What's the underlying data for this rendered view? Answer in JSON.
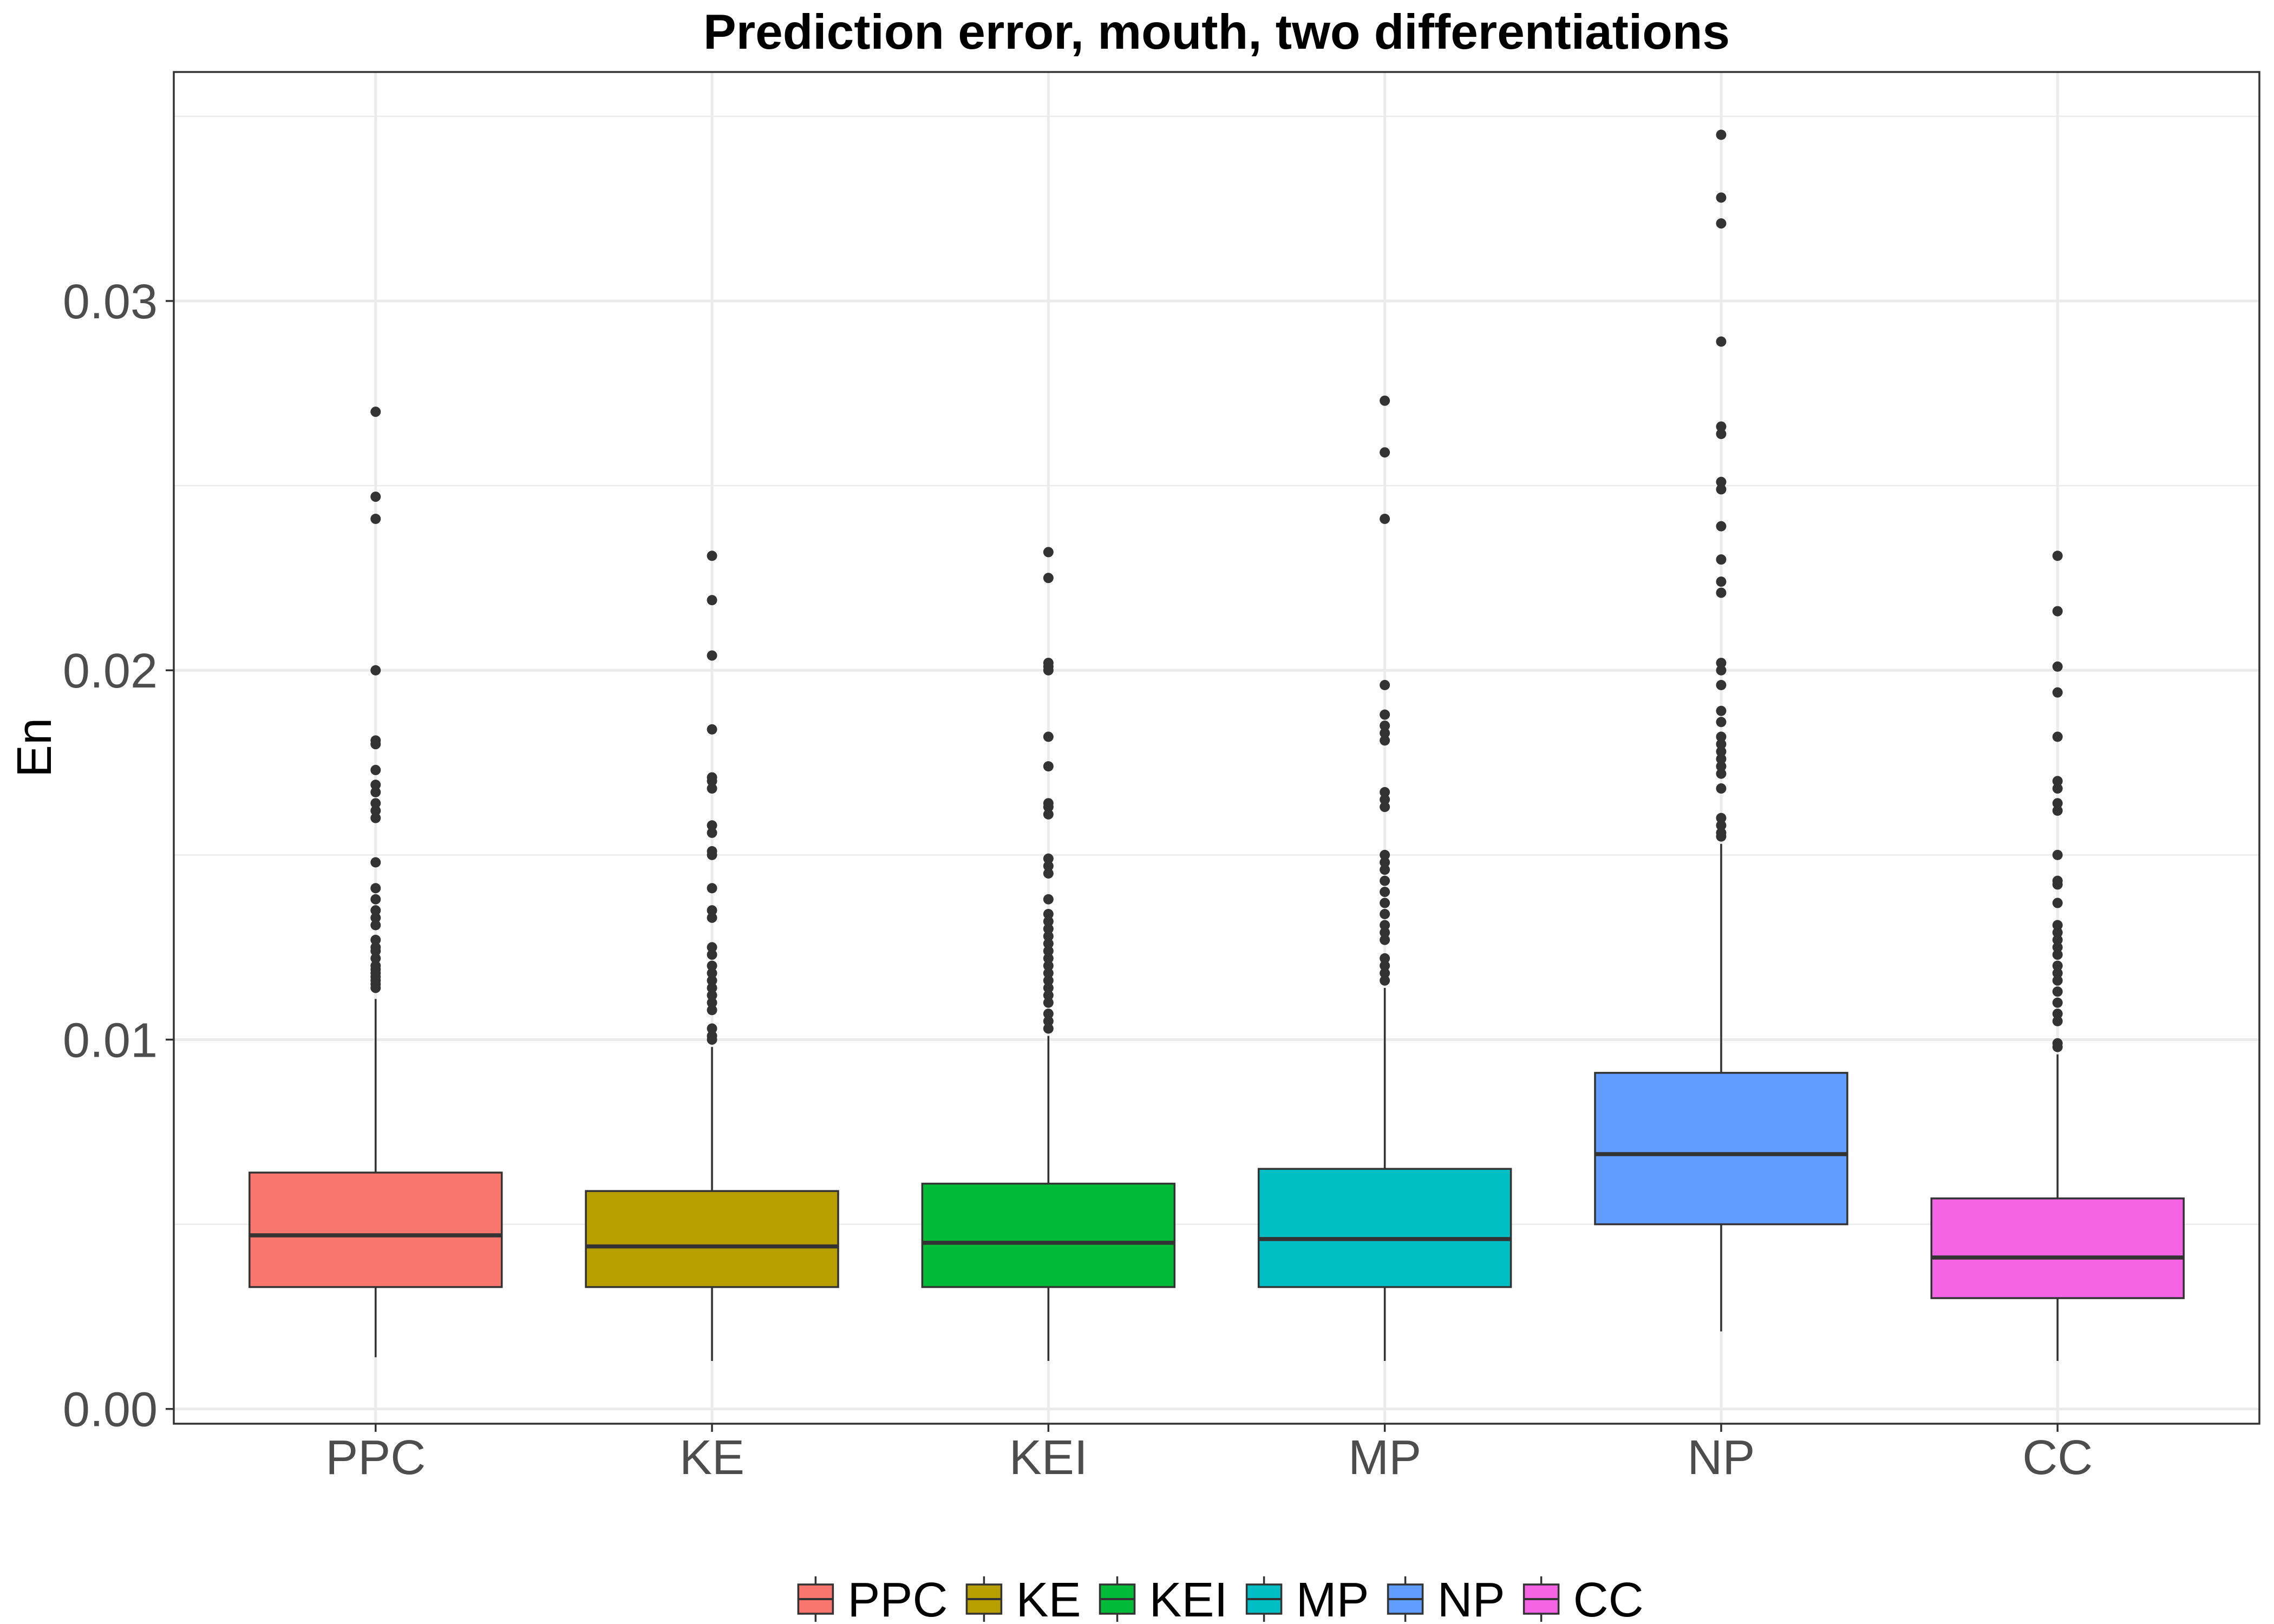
{
  "chart_data": {
    "type": "boxplot",
    "title": "Prediction error, mouth, two differentiations",
    "ylabel": "En",
    "categories": [
      "PPC",
      "KE",
      "KEI",
      "MP",
      "NP",
      "CC"
    ],
    "ylim": [
      -0.0004,
      0.0362
    ],
    "y_ticks": [
      0,
      0.01,
      0.02,
      0.03
    ],
    "y_tick_labels": [
      "0.00",
      "0.01",
      "0.02",
      "0.03"
    ],
    "y_minor_ticks": [
      0.005,
      0.015,
      0.025,
      0.035
    ],
    "grid": true,
    "legend_position": "bottom",
    "series": [
      {
        "name": "PPC",
        "color": "#F8766D",
        "whisker_low": 0.0014,
        "q1": 0.0033,
        "median": 0.0047,
        "q3": 0.0064,
        "whisker_high": 0.0111,
        "outliers": [
          0.027,
          0.0247,
          0.0241,
          0.02,
          0.0181,
          0.018,
          0.0173,
          0.0169,
          0.0167,
          0.0164,
          0.0162,
          0.016,
          0.0148,
          0.0141,
          0.0138,
          0.0135,
          0.0133,
          0.0131,
          0.0127,
          0.0125,
          0.0124,
          0.0122,
          0.012,
          0.0119,
          0.0118,
          0.0117,
          0.0116,
          0.0115,
          0.0114
        ]
      },
      {
        "name": "KE",
        "color": "#B79F00",
        "whisker_low": 0.0013,
        "q1": 0.0033,
        "median": 0.0044,
        "q3": 0.0059,
        "whisker_high": 0.0098,
        "outliers": [
          0.0231,
          0.0219,
          0.0204,
          0.0184,
          0.0171,
          0.017,
          0.0168,
          0.0158,
          0.0156,
          0.0151,
          0.015,
          0.0141,
          0.0135,
          0.0133,
          0.0125,
          0.0123,
          0.012,
          0.0118,
          0.0116,
          0.0114,
          0.0112,
          0.011,
          0.0108,
          0.0103,
          0.0101,
          0.01
        ]
      },
      {
        "name": "KEI",
        "color": "#00BA38",
        "whisker_low": 0.0013,
        "q1": 0.0033,
        "median": 0.0045,
        "q3": 0.0061,
        "whisker_high": 0.0101,
        "outliers": [
          0.0232,
          0.0225,
          0.0202,
          0.0201,
          0.02,
          0.0182,
          0.0174,
          0.0164,
          0.0163,
          0.0161,
          0.0149,
          0.0147,
          0.0145,
          0.0138,
          0.0134,
          0.0132,
          0.013,
          0.0128,
          0.0126,
          0.0124,
          0.0122,
          0.012,
          0.0118,
          0.0116,
          0.0114,
          0.0112,
          0.011,
          0.0107,
          0.0105,
          0.0103
        ]
      },
      {
        "name": "MP",
        "color": "#00BFC4",
        "whisker_low": 0.0013,
        "q1": 0.0033,
        "median": 0.0046,
        "q3": 0.0065,
        "whisker_high": 0.0114,
        "outliers": [
          0.0273,
          0.0259,
          0.0241,
          0.0196,
          0.0188,
          0.0185,
          0.0183,
          0.0181,
          0.0167,
          0.0165,
          0.0163,
          0.015,
          0.0148,
          0.0146,
          0.0143,
          0.014,
          0.0137,
          0.0134,
          0.0131,
          0.0129,
          0.0127,
          0.0122,
          0.012,
          0.0118,
          0.0116
        ]
      },
      {
        "name": "NP",
        "color": "#619CFF",
        "whisker_low": 0.0021,
        "q1": 0.005,
        "median": 0.0069,
        "q3": 0.0091,
        "whisker_high": 0.0153,
        "outliers": [
          0.0345,
          0.0328,
          0.0321,
          0.0289,
          0.0266,
          0.0264,
          0.0251,
          0.0249,
          0.0239,
          0.023,
          0.0224,
          0.0221,
          0.0202,
          0.02,
          0.0196,
          0.0189,
          0.0186,
          0.0182,
          0.018,
          0.0178,
          0.0176,
          0.0174,
          0.0172,
          0.0168,
          0.016,
          0.0158,
          0.0156,
          0.0155
        ]
      },
      {
        "name": "CC",
        "color": "#F564E3",
        "whisker_low": 0.0013,
        "q1": 0.003,
        "median": 0.0041,
        "q3": 0.0057,
        "whisker_high": 0.0096,
        "outliers": [
          0.0231,
          0.0216,
          0.0201,
          0.0194,
          0.0182,
          0.017,
          0.0168,
          0.0164,
          0.0162,
          0.015,
          0.0143,
          0.0142,
          0.0137,
          0.0131,
          0.0129,
          0.0127,
          0.0125,
          0.0123,
          0.012,
          0.0118,
          0.0116,
          0.0113,
          0.011,
          0.0107,
          0.0105,
          0.0099,
          0.0098
        ]
      }
    ]
  },
  "style": {
    "background": "#FFFFFF",
    "panel_border": "#333333",
    "grid": "#EBEBEB",
    "axis_text": "#4D4D4D",
    "box_outline": "#333333",
    "outlier": "#333333",
    "text": "#000000"
  }
}
